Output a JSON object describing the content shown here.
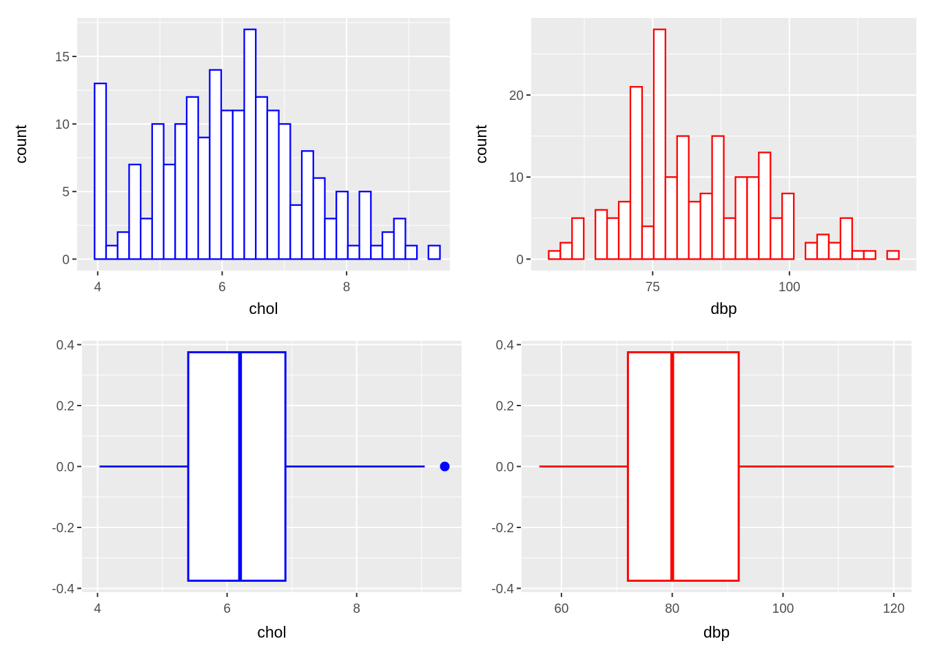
{
  "theme": {
    "background": "#FFFFFF",
    "panel_background": "#EBEBEB",
    "grid_color": "#FFFFFF",
    "tick_mark_color": "#333333",
    "tick_label_color": "#4D4D4D",
    "axis_title_color": "#000000",
    "geom_fill": "#FFFFFF",
    "blue": "#0000FF",
    "red": "#FF0000"
  },
  "chart_data": [
    {
      "id": "chol-histogram",
      "type": "bar",
      "subtype": "histogram",
      "variable": "chol",
      "title": "",
      "xlabel": "chol",
      "ylabel": "count",
      "color": "#0000FF",
      "bin_start": 3.95,
      "bin_width": 0.185,
      "counts": [
        13,
        1,
        2,
        7,
        3,
        10,
        7,
        10,
        12,
        9,
        14,
        11,
        11,
        17,
        12,
        11,
        10,
        4,
        8,
        6,
        3,
        5,
        1,
        5,
        1,
        2,
        3,
        1,
        0,
        1
      ],
      "n_total": 200,
      "xlim": [
        3.67,
        9.66
      ],
      "ylim": [
        -0.85,
        17.85
      ],
      "grid": true,
      "legend": "none",
      "x_ticks": [
        4,
        6,
        8
      ],
      "x_tick_labels": [
        "4",
        "6",
        "8"
      ],
      "x_minor_breaks": [
        5,
        7,
        9
      ],
      "y_ticks": [
        0,
        5,
        10,
        15
      ],
      "y_tick_labels": [
        "0",
        "5",
        "10",
        "15"
      ],
      "y_minor_breaks": [
        2.5,
        7.5,
        12.5,
        17.5
      ]
    },
    {
      "id": "dbp-histogram",
      "type": "bar",
      "subtype": "histogram",
      "variable": "dbp",
      "title": "",
      "xlabel": "dbp",
      "ylabel": "count",
      "color": "#FF0000",
      "bin_start": 56,
      "bin_width": 2.1333,
      "counts": [
        1,
        2,
        5,
        0,
        6,
        5,
        7,
        21,
        4,
        28,
        10,
        15,
        7,
        8,
        15,
        5,
        10,
        10,
        13,
        5,
        8,
        0,
        2,
        3,
        2,
        5,
        1,
        1,
        0,
        1
      ],
      "n_total": 200,
      "xlim": [
        52.8,
        123.2
      ],
      "ylim": [
        -1.4,
        29.4
      ],
      "grid": true,
      "legend": "none",
      "x_ticks": [
        75,
        100
      ],
      "x_tick_labels": [
        "75",
        "100"
      ],
      "x_minor_breaks": [
        62.5,
        87.5,
        112.5
      ],
      "y_ticks": [
        0,
        10,
        20
      ],
      "y_tick_labels": [
        "0",
        "10",
        "20"
      ],
      "y_minor_breaks": [
        5,
        15,
        25
      ]
    },
    {
      "id": "chol-boxplot",
      "type": "boxplot",
      "orientation": "horizontal",
      "variable": "chol",
      "title": "",
      "xlabel": "chol",
      "ylabel": "",
      "color": "#0000FF",
      "stats": {
        "whisker_min": 4.03,
        "q1": 5.4,
        "median": 6.2,
        "q3": 6.9,
        "whisker_max": 9.05
      },
      "outliers": [
        9.36
      ],
      "box_center_y": 0,
      "box_half_height": 0.375,
      "xlim": [
        3.76,
        9.62
      ],
      "ylim": [
        -0.4125,
        0.4125
      ],
      "grid": true,
      "legend": "none",
      "x_ticks": [
        4,
        6,
        8
      ],
      "x_tick_labels": [
        "4",
        "6",
        "8"
      ],
      "x_minor_breaks": [
        5,
        7,
        9
      ],
      "y_ticks": [
        -0.4,
        -0.2,
        0,
        0.2,
        0.4
      ],
      "y_tick_labels": [
        "-0.4",
        "-0.2",
        "0.0",
        "0.2",
        "0.4"
      ],
      "y_minor_breaks": [
        -0.3,
        -0.1,
        0.1,
        0.3
      ]
    },
    {
      "id": "dbp-boxplot",
      "type": "boxplot",
      "orientation": "horizontal",
      "variable": "dbp",
      "title": "",
      "xlabel": "dbp",
      "ylabel": "",
      "color": "#FF0000",
      "stats": {
        "whisker_min": 56,
        "q1": 72,
        "median": 80,
        "q3": 92,
        "whisker_max": 120
      },
      "outliers": [],
      "box_center_y": 0,
      "box_half_height": 0.375,
      "xlim": [
        52.8,
        123.2
      ],
      "ylim": [
        -0.4125,
        0.4125
      ],
      "grid": true,
      "legend": "none",
      "x_ticks": [
        60,
        80,
        100,
        120
      ],
      "x_tick_labels": [
        "60",
        "80",
        "100",
        "120"
      ],
      "x_minor_breaks": [
        70,
        90,
        110
      ],
      "y_ticks": [
        -0.4,
        -0.2,
        0,
        0.2,
        0.4
      ],
      "y_tick_labels": [
        "-0.4",
        "-0.2",
        "0.0",
        "0.2",
        "0.4"
      ],
      "y_minor_breaks": [
        -0.3,
        -0.1,
        0.1,
        0.3
      ]
    }
  ]
}
